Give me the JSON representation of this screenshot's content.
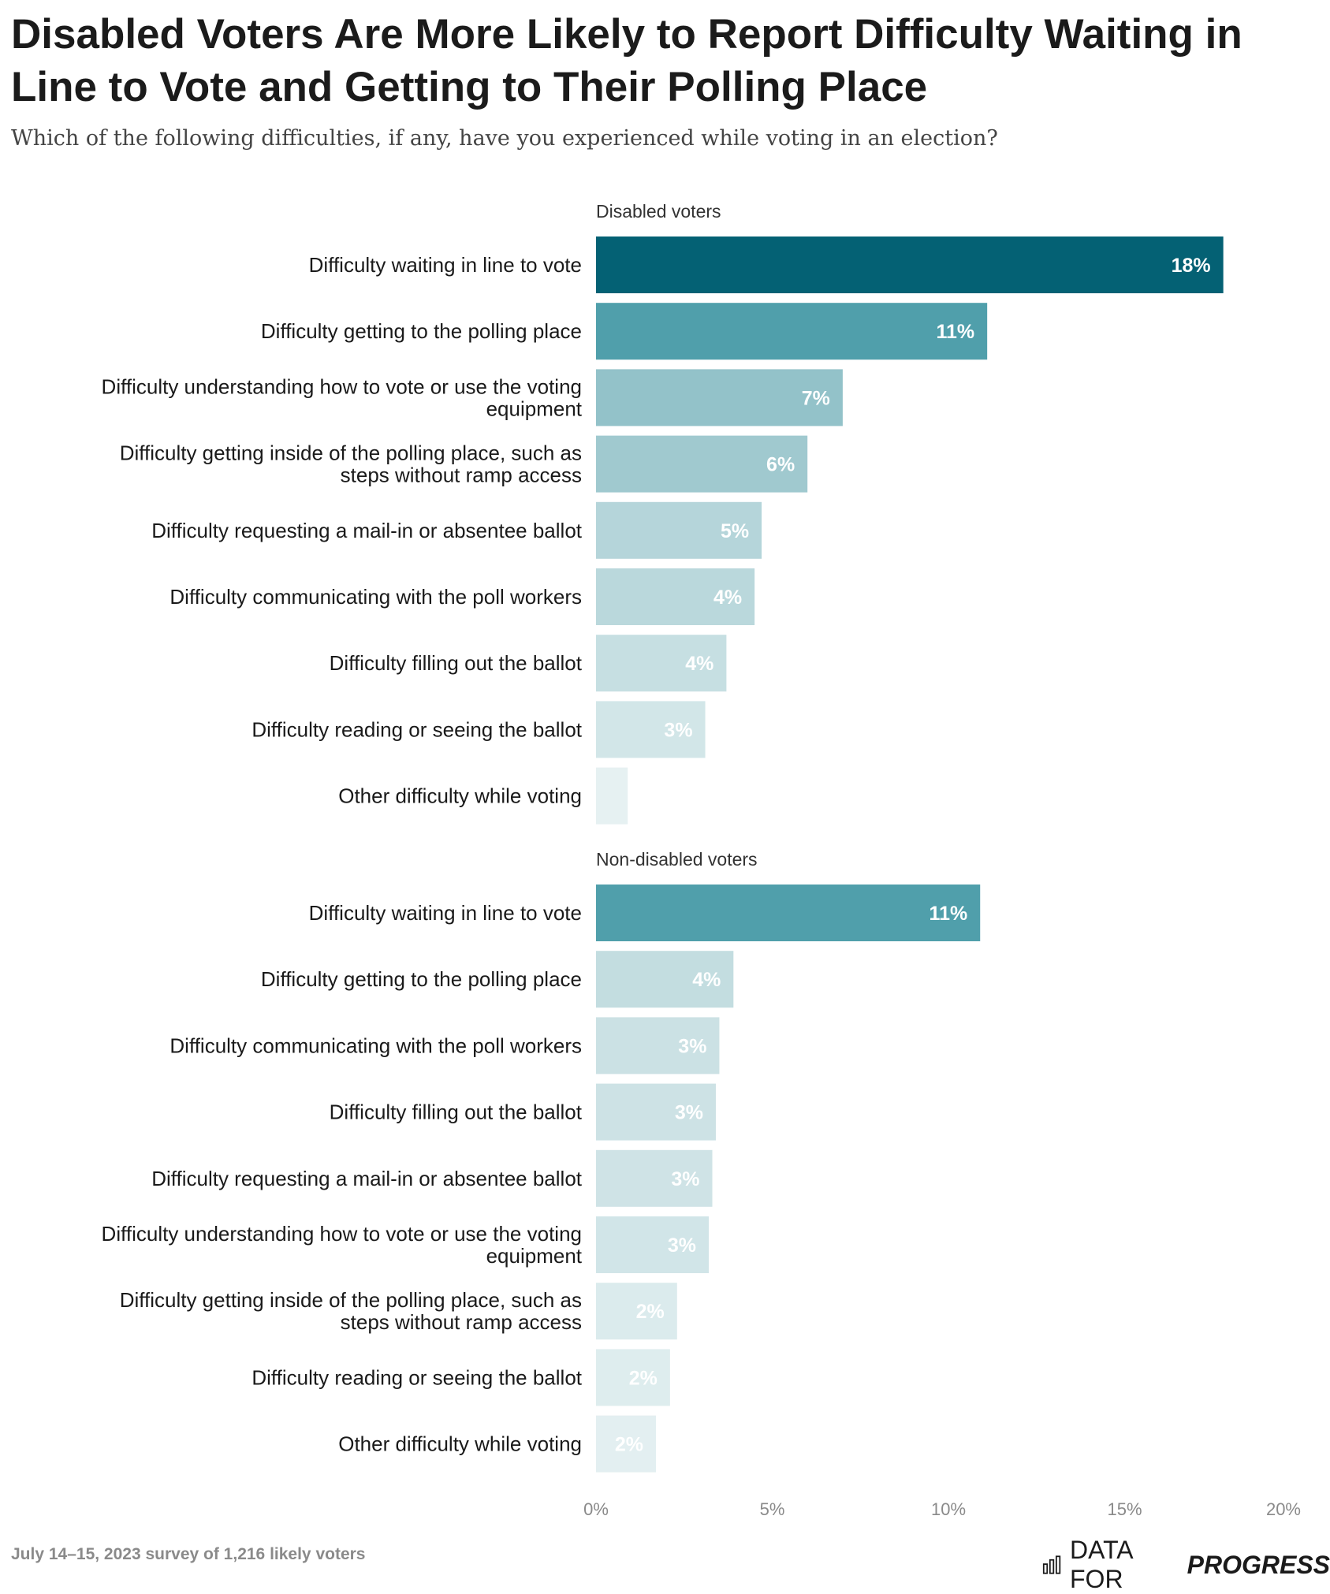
{
  "title": "Disabled Voters Are More Likely to Report Difficulty Waiting in Line to Vote and Getting to Their Polling Place",
  "subtitle": "Which of the following difficulties, if any, have you experienced while voting in an election?",
  "footer": {
    "note": "July 14–15, 2023 survey of 1,216 likely voters",
    "brand_regular": "DATA FOR",
    "brand_bold": "PROGRESS",
    "brand_icon": "bar-chart-icon"
  },
  "chart_data": {
    "type": "bar",
    "orientation": "horizontal",
    "xlim": [
      0,
      20
    ],
    "ticks": [
      0,
      5,
      10,
      15,
      20
    ],
    "tick_labels": [
      "0%",
      "5%",
      "10%",
      "15%",
      "20%"
    ],
    "grid": false,
    "panels": [
      {
        "name": "Disabled voters",
        "bars": [
          {
            "label": [
              "Difficulty waiting in line to vote"
            ],
            "value": 17.8,
            "value_label": "18%",
            "color": "#046174",
            "label_color": "#ffffff"
          },
          {
            "label": [
              "Difficulty getting to the polling place"
            ],
            "value": 11.1,
            "value_label": "11%",
            "color": "#509fab",
            "label_color": "#ffffff"
          },
          {
            "label": [
              "Difficulty understanding how to vote or use the voting",
              "equipment"
            ],
            "value": 7.0,
            "value_label": "7%",
            "color": "#93c2c9",
            "label_color": "#ffffff"
          },
          {
            "label": [
              "Difficulty getting inside of the polling place, such as",
              "steps without ramp access"
            ],
            "value": 6.0,
            "value_label": "6%",
            "color": "#a0c9cf",
            "label_color": "#ffffff"
          },
          {
            "label": [
              "Difficulty requesting a mail-in or absentee ballot"
            ],
            "value": 4.7,
            "value_label": "5%",
            "color": "#b5d5da",
            "label_color": "#ffffff"
          },
          {
            "label": [
              "Difficulty communicating with the poll workers"
            ],
            "value": 4.5,
            "value_label": "4%",
            "color": "#bad8dc",
            "label_color": "#ffffff"
          },
          {
            "label": [
              "Difficulty filling out the ballot"
            ],
            "value": 3.7,
            "value_label": "4%",
            "color": "#c6dfe2",
            "label_color": "#ffffff"
          },
          {
            "label": [
              "Difficulty reading or seeing the ballot"
            ],
            "value": 3.1,
            "value_label": "3%",
            "color": "#d2e6e8",
            "label_color": "#ffffff"
          },
          {
            "label": [
              "Other difficulty while voting"
            ],
            "value": 0.9,
            "value_label": "",
            "color": "#e6f1f2",
            "label_color": "#ffffff"
          }
        ]
      },
      {
        "name": "Non-disabled voters",
        "bars": [
          {
            "label": [
              "Difficulty waiting in line to vote"
            ],
            "value": 10.9,
            "value_label": "11%",
            "color": "#509fab",
            "label_color": "#ffffff"
          },
          {
            "label": [
              "Difficulty getting to the polling place"
            ],
            "value": 3.9,
            "value_label": "4%",
            "color": "#c3dde0",
            "label_color": "#ffffff"
          },
          {
            "label": [
              "Difficulty communicating with the poll workers"
            ],
            "value": 3.5,
            "value_label": "3%",
            "color": "#cbe1e4",
            "label_color": "#ffffff"
          },
          {
            "label": [
              "Difficulty filling out the ballot"
            ],
            "value": 3.4,
            "value_label": "3%",
            "color": "#cde2e5",
            "label_color": "#ffffff"
          },
          {
            "label": [
              "Difficulty requesting a mail-in or absentee ballot"
            ],
            "value": 3.3,
            "value_label": "3%",
            "color": "#cfe3e6",
            "label_color": "#ffffff"
          },
          {
            "label": [
              "Difficulty understanding how to vote or use the voting",
              "equipment"
            ],
            "value": 3.2,
            "value_label": "3%",
            "color": "#d1e5e8",
            "label_color": "#ffffff"
          },
          {
            "label": [
              "Difficulty getting inside of the polling place, such as",
              "steps without ramp access"
            ],
            "value": 2.3,
            "value_label": "2%",
            "color": "#dbebed",
            "label_color": "#ffffff"
          },
          {
            "label": [
              "Difficulty reading or seeing the ballot"
            ],
            "value": 2.1,
            "value_label": "2%",
            "color": "#deedee",
            "label_color": "#ffffff"
          },
          {
            "label": [
              "Other difficulty while voting"
            ],
            "value": 1.7,
            "value_label": "2%",
            "color": "#e3eff1",
            "label_color": "#ffffff"
          }
        ]
      }
    ]
  }
}
